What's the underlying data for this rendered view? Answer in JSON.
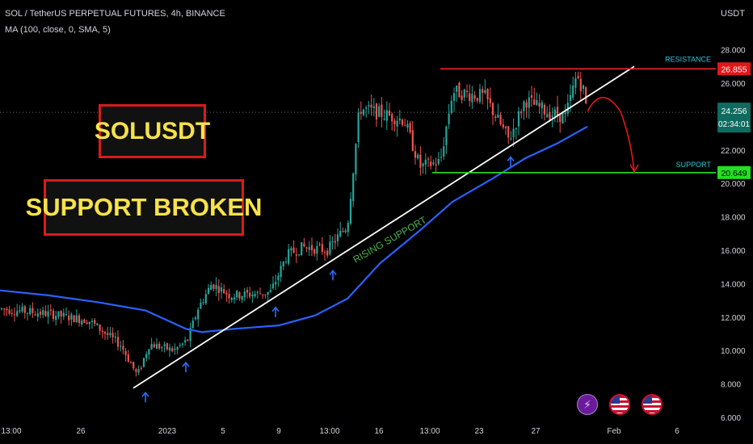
{
  "header": {
    "title": "SOL / TetherUS PERPETUAL FUTURES, 4h, BINANCE",
    "indicator": "MA (100, close, 0, SMA, 5)",
    "currency": "USDT"
  },
  "annotations": {
    "box1": "SOLUSDT",
    "box2": "SUPPORT BROKEN",
    "resistance_label": "RESISTANCE",
    "support_label": "SUPPORT",
    "rising_support_label": "RISING SUPPORT"
  },
  "price_tags": {
    "resistance": "26.855",
    "current": "24.256",
    "countdown": "02:34:01",
    "support": "20.649"
  },
  "colors": {
    "up": "#26a69a",
    "down": "#ef5350",
    "ma": "#2962ff",
    "trend": "#ffffff",
    "resistance": "#ff1f1f",
    "support": "#22e022",
    "arrow": "#2f6bff",
    "label_cyan": "#2ec4d6",
    "rising_support": "#4caf50",
    "box_text": "#f7e24a",
    "box_border": "#d81b1b"
  },
  "icons": [
    "lightning-icon",
    "us-flag-icon",
    "us-flag-icon"
  ],
  "chart_data": {
    "type": "candlestick",
    "ylim": [
      6,
      29
    ],
    "y_ticks": [
      "28.000",
      "26.000",
      "24.000",
      "22.000",
      "20.000",
      "18.000",
      "16.000",
      "14.000",
      "12.000",
      "10.000",
      "8.000",
      "6.000"
    ],
    "x_ticks": [
      "13:00",
      "26",
      "2023",
      "5",
      "9",
      "13:00",
      "16",
      "13:00",
      "23",
      "27",
      "Feb",
      "6"
    ],
    "resistance": 26.855,
    "support": 20.649,
    "current_price": 24.256,
    "price_path": [
      [
        0,
        12.5
      ],
      [
        60,
        12.2
      ],
      [
        110,
        11.8
      ],
      [
        150,
        10.3
      ],
      [
        170,
        8.5
      ],
      [
        185,
        10.4
      ],
      [
        215,
        10.0
      ],
      [
        232,
        10.6
      ],
      [
        245,
        12.5
      ],
      [
        262,
        14.0
      ],
      [
        285,
        13.3
      ],
      [
        320,
        13.4
      ],
      [
        335,
        13.5
      ],
      [
        355,
        15.7
      ],
      [
        375,
        16.2
      ],
      [
        405,
        16.0
      ],
      [
        430,
        17.5
      ],
      [
        445,
        24.5
      ],
      [
        470,
        24.2
      ],
      [
        500,
        23.8
      ],
      [
        520,
        21.0
      ],
      [
        545,
        21.3
      ],
      [
        560,
        25.5
      ],
      [
        600,
        25.2
      ],
      [
        630,
        22.6
      ],
      [
        650,
        25.0
      ],
      [
        680,
        24.2
      ],
      [
        700,
        24.0
      ],
      [
        714,
        26.5
      ],
      [
        722,
        25.6
      ],
      [
        727,
        24.2
      ]
    ],
    "ma_path": [
      [
        0,
        13.6
      ],
      [
        60,
        13.3
      ],
      [
        120,
        12.9
      ],
      [
        180,
        12.4
      ],
      [
        230,
        11.3
      ],
      [
        250,
        11.1
      ],
      [
        290,
        11.3
      ],
      [
        345,
        11.5
      ],
      [
        390,
        12.1
      ],
      [
        430,
        13.1
      ],
      [
        470,
        15.2
      ],
      [
        520,
        17.2
      ],
      [
        560,
        18.9
      ],
      [
        610,
        20.3
      ],
      [
        650,
        21.5
      ],
      [
        690,
        22.4
      ],
      [
        727,
        23.4
      ]
    ],
    "rising_support_line": [
      [
        165,
        7.75
      ],
      [
        785,
        27.0
      ]
    ],
    "up_arrows": [
      [
        180,
        6.9
      ],
      [
        230,
        8.7
      ],
      [
        341,
        12.0
      ],
      [
        412,
        14.2
      ],
      [
        632,
        21.0
      ]
    ],
    "projection": [
      [
        727,
        24.3
      ],
      [
        745,
        25.3
      ],
      [
        768,
        24.3
      ],
      [
        785,
        20.7
      ]
    ]
  }
}
